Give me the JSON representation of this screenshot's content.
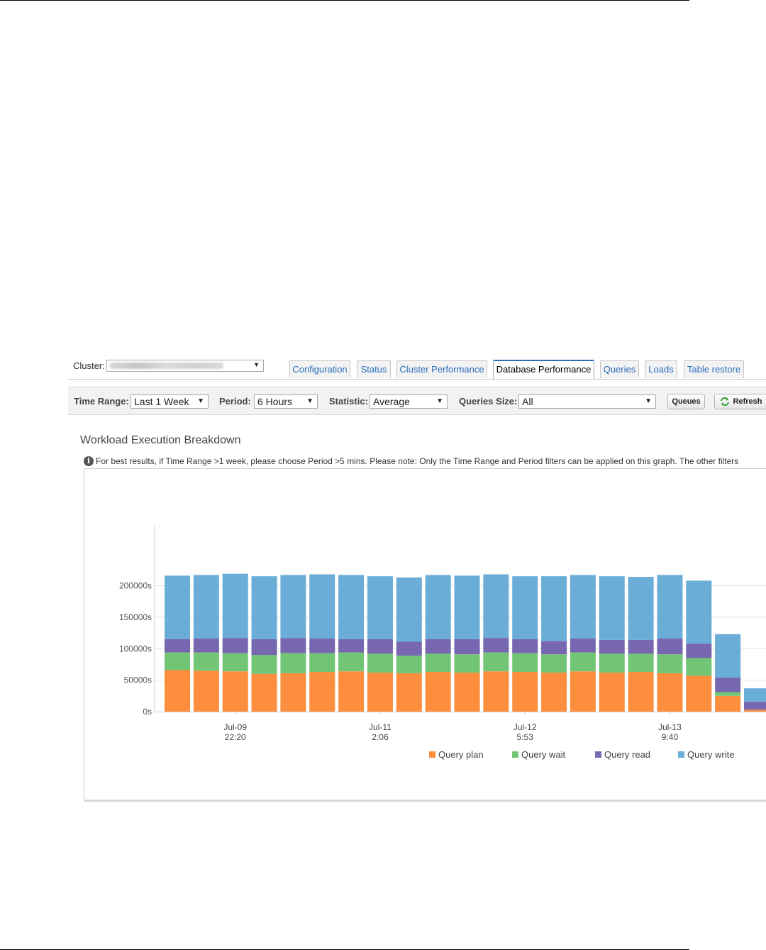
{
  "cluster": {
    "label": "Cluster:",
    "value": ""
  },
  "tabs": [
    {
      "label": "Configuration",
      "active": false
    },
    {
      "label": "Status",
      "active": false
    },
    {
      "label": "Cluster Performance",
      "active": false
    },
    {
      "label": "Database Performance",
      "active": true
    },
    {
      "label": "Queries",
      "active": false
    },
    {
      "label": "Loads",
      "active": false
    },
    {
      "label": "Table restore",
      "active": false
    }
  ],
  "filters": {
    "time_range": {
      "label": "Time Range:",
      "value": "Last 1 Week"
    },
    "period": {
      "label": "Period:",
      "value": "6 Hours"
    },
    "statistic": {
      "label": "Statistic:",
      "value": "Average"
    },
    "queries_size": {
      "label": "Queries Size:",
      "value": "All"
    }
  },
  "buttons": {
    "queues": "Queues",
    "refresh": "Refresh"
  },
  "panel": {
    "title": "Workload Execution Breakdown",
    "info": "For best results, if Time Range >1 week, please choose Period >5 mins. Please note: Only the Time Range and Period filters can be applied on this graph. The other filters"
  },
  "colors": {
    "query_plan": "#fd8e3d",
    "query_wait": "#71c575",
    "query_read": "#7667b0",
    "query_write": "#6aadd6",
    "tab_link": "#2a6ebb"
  },
  "chart_data": {
    "type": "bar",
    "stacked": true,
    "ylim": [
      0,
      240000
    ],
    "y_ticks": [
      {
        "value": 0,
        "label": "0s"
      },
      {
        "value": 50000,
        "label": "50000s"
      },
      {
        "value": 100000,
        "label": "100000s"
      },
      {
        "value": 150000,
        "label": "150000s"
      },
      {
        "value": 200000,
        "label": "200000s"
      }
    ],
    "x_ticks": [
      {
        "index": 2.5,
        "line1": "Jul-09",
        "line2": "22:20"
      },
      {
        "index": 7.5,
        "line1": "Jul-11",
        "line2": "2:06"
      },
      {
        "index": 12.5,
        "line1": "Jul-12",
        "line2": "5:53"
      },
      {
        "index": 17.5,
        "line1": "Jul-13",
        "line2": "9:40"
      }
    ],
    "grid": true,
    "legend_position": "bottom",
    "series": [
      {
        "name": "Query plan",
        "color": "#fd8e3d",
        "values": [
          66000,
          65000,
          64000,
          60000,
          61000,
          63000,
          64000,
          62000,
          61000,
          63000,
          62000,
          64000,
          63000,
          62000,
          64000,
          62000,
          63000,
          61000,
          57000,
          25000,
          3000
        ]
      },
      {
        "name": "Query wait",
        "color": "#71c575",
        "values": [
          28000,
          29000,
          29000,
          30000,
          32000,
          30000,
          30000,
          30000,
          28000,
          29000,
          29000,
          30000,
          30000,
          29000,
          30000,
          30000,
          29000,
          30000,
          28000,
          6000,
          0
        ]
      },
      {
        "name": "Query read",
        "color": "#7667b0",
        "values": [
          21000,
          22000,
          24000,
          25000,
          24000,
          23000,
          21000,
          23000,
          22000,
          23000,
          24000,
          23000,
          22000,
          21000,
          22000,
          22000,
          22000,
          25000,
          23000,
          23000,
          13000
        ]
      },
      {
        "name": "Query write",
        "color": "#6aadd6",
        "values": [
          101000,
          101000,
          102000,
          100000,
          100000,
          102000,
          102000,
          100000,
          102000,
          102000,
          101000,
          101000,
          100000,
          103000,
          101000,
          101000,
          100000,
          101000,
          100000,
          69000,
          21000
        ]
      }
    ]
  }
}
